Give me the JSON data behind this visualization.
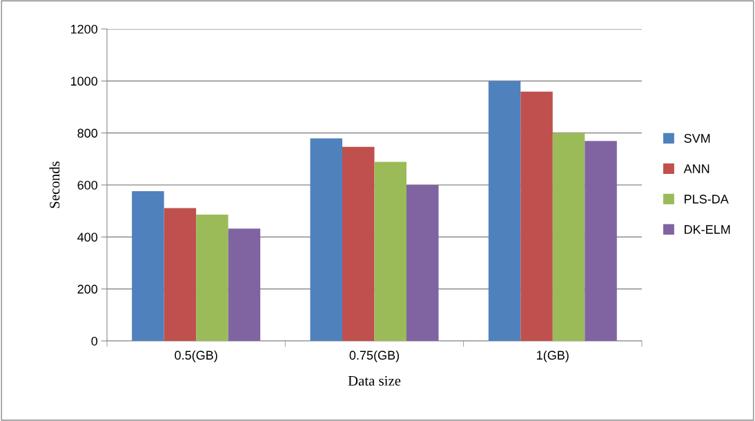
{
  "chart_data": {
    "type": "bar",
    "xlabel": "Data size",
    "ylabel": "Seconds",
    "categories": [
      "0.5(GB)",
      "0.75(GB)",
      "1(GB)"
    ],
    "series": [
      {
        "name": "SVM",
        "color": "#4f81bd",
        "values": [
          576,
          779,
          1000
        ]
      },
      {
        "name": "ANN",
        "color": "#c0504d",
        "values": [
          511,
          747,
          959
        ]
      },
      {
        "name": "PLS-DA",
        "color": "#9bbb59",
        "values": [
          486,
          689,
          800
        ]
      },
      {
        "name": "DK-ELM",
        "color": "#8064a2",
        "values": [
          432,
          600,
          769
        ]
      }
    ],
    "ylim": [
      0,
      1200
    ],
    "yticks": [
      0,
      200,
      400,
      600,
      800,
      1000,
      1200
    ],
    "grid": "y",
    "legend": "right"
  }
}
